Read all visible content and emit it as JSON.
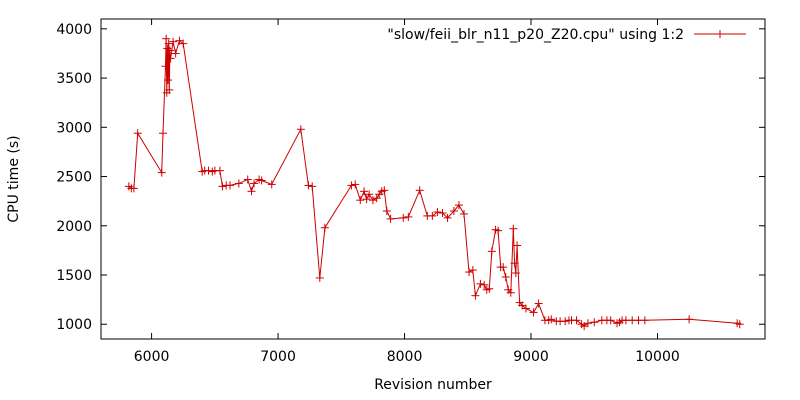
{
  "chart_data": {
    "type": "line",
    "title": "",
    "xlabel": "Revision number",
    "ylabel": "CPU time (s)",
    "xlim": [
      5600,
      10850
    ],
    "ylim": [
      850,
      4100
    ],
    "x_ticks": [
      6000,
      7000,
      8000,
      9000,
      10000
    ],
    "y_ticks": [
      1000,
      1500,
      2000,
      2500,
      3000,
      3500,
      4000
    ],
    "grid": false,
    "legend_position": "top-right",
    "series_color": "#cc0000",
    "series": [
      {
        "name": "\"slow/feii_blr_n11_p20_Z20.cpu\" using 1:2",
        "x": [
          5820,
          5840,
          5860,
          5890,
          6080,
          6090,
          6110,
          6115,
          6120,
          6125,
          6130,
          6135,
          6140,
          6145,
          6150,
          6170,
          6190,
          6220,
          6250,
          6400,
          6420,
          6450,
          6480,
          6500,
          6540,
          6560,
          6590,
          6620,
          6690,
          6760,
          6790,
          6810,
          6850,
          6870,
          6950,
          7180,
          7240,
          7270,
          7330,
          7370,
          7580,
          7610,
          7650,
          7680,
          7700,
          7720,
          7750,
          7780,
          7800,
          7820,
          7840,
          7860,
          7890,
          7990,
          8030,
          8120,
          8180,
          8220,
          8260,
          8300,
          8340,
          8390,
          8430,
          8470,
          8510,
          8540,
          8560,
          8600,
          8630,
          8650,
          8670,
          8690,
          8720,
          8740,
          8760,
          8780,
          8800,
          8820,
          8840,
          8860,
          8870,
          8880,
          8890,
          8910,
          8930,
          8960,
          9020,
          9060,
          9110,
          9140,
          9160,
          9200,
          9230,
          9270,
          9300,
          9320,
          9360,
          9400,
          9420,
          9450,
          9500,
          9560,
          9600,
          9630,
          9680,
          9700,
          9720,
          9750,
          9800,
          9850,
          9900,
          10250,
          10630,
          10650
        ],
        "y": [
          2400,
          2380,
          2380,
          2940,
          2540,
          2940,
          3620,
          3900,
          3350,
          3800,
          3480,
          3850,
          3380,
          3780,
          3700,
          3870,
          3750,
          3880,
          3850,
          2550,
          2560,
          2560,
          2550,
          2560,
          2560,
          2400,
          2410,
          2410,
          2430,
          2470,
          2350,
          2430,
          2470,
          2460,
          2420,
          2980,
          2410,
          2400,
          1470,
          1980,
          2410,
          2420,
          2260,
          2350,
          2270,
          2320,
          2260,
          2280,
          2320,
          2350,
          2360,
          2150,
          2070,
          2080,
          2090,
          2360,
          2100,
          2100,
          2140,
          2130,
          2080,
          2150,
          2210,
          2120,
          1530,
          1550,
          1290,
          1410,
          1400,
          1350,
          1360,
          1740,
          1960,
          1950,
          1580,
          1580,
          1480,
          1350,
          1320,
          1970,
          1620,
          1520,
          1800,
          1220,
          1190,
          1160,
          1120,
          1210,
          1040,
          1040,
          1050,
          1030,
          1030,
          1030,
          1040,
          1040,
          1040,
          1000,
          980,
          1010,
          1020,
          1040,
          1040,
          1040,
          1010,
          1020,
          1040,
          1040,
          1040,
          1040,
          1040,
          1050,
          1010,
          1000
        ]
      }
    ]
  }
}
